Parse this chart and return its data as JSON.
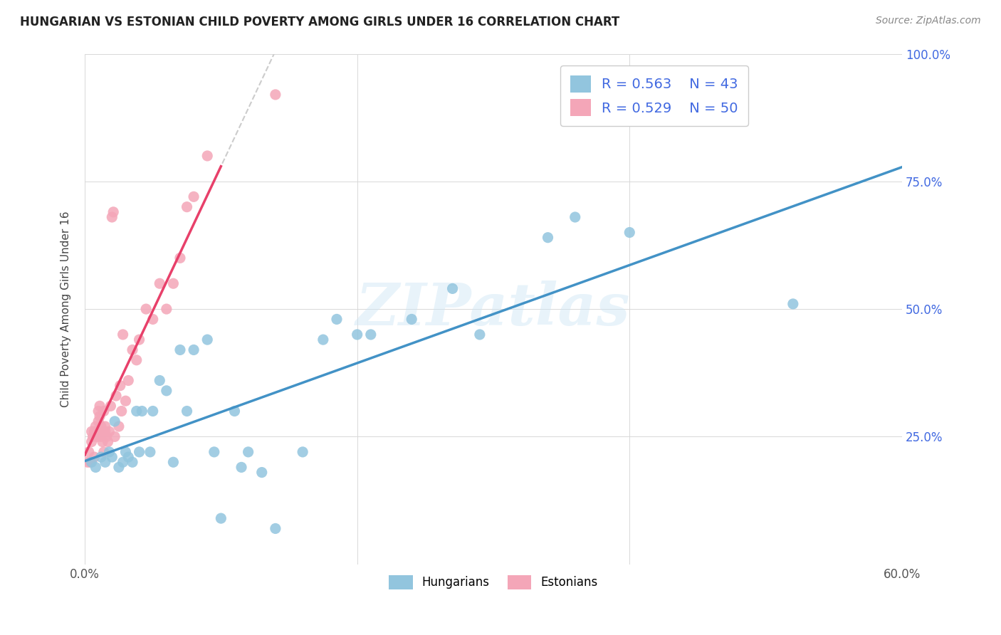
{
  "title": "HUNGARIAN VS ESTONIAN CHILD POVERTY AMONG GIRLS UNDER 16 CORRELATION CHART",
  "source": "Source: ZipAtlas.com",
  "ylabel": "Child Poverty Among Girls Under 16",
  "xlim": [
    0.0,
    0.6
  ],
  "ylim": [
    0.0,
    1.0
  ],
  "xtick_vals": [
    0.0,
    0.2,
    0.4,
    0.6
  ],
  "xtick_labels": [
    "0.0%",
    "",
    "",
    "60.0%"
  ],
  "ytick_vals": [
    0.25,
    0.5,
    0.75,
    1.0
  ],
  "right_ytick_labels": [
    "25.0%",
    "50.0%",
    "75.0%",
    "100.0%"
  ],
  "hungarian_color": "#92c5de",
  "estonian_color": "#f4a6b8",
  "hungarian_line_color": "#4292c6",
  "estonian_line_color": "#e8406a",
  "R_hungarian": 0.563,
  "N_hungarian": 43,
  "R_estonian": 0.529,
  "N_estonian": 50,
  "legend_text_color": "#4169e1",
  "watermark": "ZIPatlas",
  "hungarian_x": [
    0.005,
    0.008,
    0.012,
    0.015,
    0.018,
    0.02,
    0.022,
    0.025,
    0.028,
    0.03,
    0.032,
    0.035,
    0.038,
    0.04,
    0.042,
    0.048,
    0.05,
    0.055,
    0.06,
    0.065,
    0.07,
    0.075,
    0.08,
    0.09,
    0.095,
    0.1,
    0.11,
    0.115,
    0.12,
    0.13,
    0.14,
    0.16,
    0.175,
    0.185,
    0.2,
    0.21,
    0.24,
    0.27,
    0.29,
    0.34,
    0.36,
    0.4,
    0.52
  ],
  "hungarian_y": [
    0.2,
    0.19,
    0.21,
    0.2,
    0.22,
    0.21,
    0.28,
    0.19,
    0.2,
    0.22,
    0.21,
    0.2,
    0.3,
    0.22,
    0.3,
    0.22,
    0.3,
    0.36,
    0.34,
    0.2,
    0.42,
    0.3,
    0.42,
    0.44,
    0.22,
    0.09,
    0.3,
    0.19,
    0.22,
    0.18,
    0.07,
    0.22,
    0.44,
    0.48,
    0.45,
    0.45,
    0.48,
    0.54,
    0.45,
    0.64,
    0.68,
    0.65,
    0.51
  ],
  "estonian_x": [
    0.002,
    0.003,
    0.004,
    0.005,
    0.005,
    0.006,
    0.007,
    0.007,
    0.008,
    0.008,
    0.009,
    0.01,
    0.01,
    0.011,
    0.011,
    0.012,
    0.012,
    0.013,
    0.013,
    0.014,
    0.014,
    0.015,
    0.015,
    0.016,
    0.017,
    0.018,
    0.019,
    0.02,
    0.021,
    0.022,
    0.023,
    0.025,
    0.026,
    0.027,
    0.028,
    0.03,
    0.032,
    0.035,
    0.038,
    0.04,
    0.045,
    0.05,
    0.055,
    0.06,
    0.065,
    0.07,
    0.075,
    0.08,
    0.09,
    0.14
  ],
  "estonian_y": [
    0.2,
    0.22,
    0.2,
    0.24,
    0.26,
    0.25,
    0.26,
    0.21,
    0.27,
    0.26,
    0.25,
    0.3,
    0.28,
    0.29,
    0.31,
    0.27,
    0.25,
    0.26,
    0.24,
    0.22,
    0.3,
    0.27,
    0.26,
    0.25,
    0.24,
    0.26,
    0.31,
    0.68,
    0.69,
    0.25,
    0.33,
    0.27,
    0.35,
    0.3,
    0.45,
    0.32,
    0.36,
    0.42,
    0.4,
    0.44,
    0.5,
    0.48,
    0.55,
    0.5,
    0.55,
    0.6,
    0.7,
    0.72,
    0.8,
    0.92
  ],
  "background_color": "#ffffff",
  "grid_color": "#d8d8d8"
}
